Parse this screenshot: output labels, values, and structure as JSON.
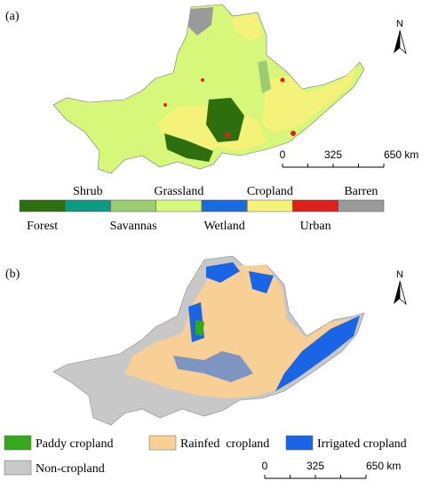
{
  "panels": [
    {
      "label": "(a)",
      "north": "N",
      "scale_bar": [
        "0",
        "325",
        "650 km"
      ],
      "legend": [
        {
          "name": "Forest",
          "color": "#2d6e0e"
        },
        {
          "name": "Shrub",
          "color": "#0d9a84"
        },
        {
          "name": "Savannas",
          "color": "#9ccc72"
        },
        {
          "name": "Grassland",
          "color": "#d6f77a"
        },
        {
          "name": "Wetland",
          "color": "#1a6be0"
        },
        {
          "name": "Cropland",
          "color": "#f5f27a"
        },
        {
          "name": "Urban",
          "color": "#e0201a"
        },
        {
          "name": "Barren",
          "color": "#9a9a9a"
        }
      ]
    },
    {
      "label": "(b)",
      "north": "N",
      "scale_bar": [
        "0",
        "325",
        "650 km"
      ],
      "legend": [
        {
          "name": "Paddy cropland",
          "color": "#35a81c"
        },
        {
          "name": "Rainfed  cropland",
          "color": "#f8cf94"
        },
        {
          "name": "Irrigated cropland",
          "color": "#1a64e6"
        },
        {
          "name": "Non-cropland",
          "color": "#c8c8c8"
        }
      ]
    }
  ]
}
